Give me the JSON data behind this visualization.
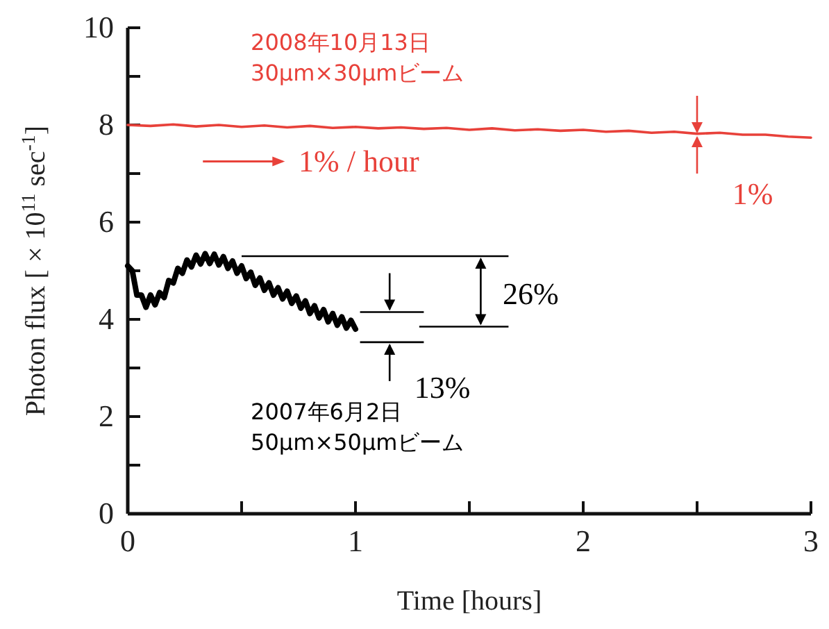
{
  "chart_data": {
    "type": "line",
    "xlabel": "Time [hours]",
    "ylabel": "Photon flux [ × 10$^{11}$ sec$^{-1}$]",
    "xlim": [
      0,
      3
    ],
    "ylim": [
      0,
      10
    ],
    "xticks": [
      0,
      {
        "value": 0.5,
        "label": null
      },
      1,
      {
        "value": 1.5,
        "label": null
      },
      2,
      {
        "value": 2.5,
        "label": null
      },
      3
    ],
    "yticks": [
      0,
      {
        "value": 1,
        "label": null
      },
      2,
      {
        "value": 3,
        "label": null
      },
      4,
      {
        "value": 5,
        "label": null
      },
      6,
      {
        "value": 7,
        "label": null
      },
      8,
      {
        "value": 9,
        "label": null
      },
      10
    ],
    "grid": false,
    "marker": "none",
    "line_style": "solid",
    "series": [
      {
        "name": "2008年10月13日 30μm×30μmビーム",
        "color": "#e8413a",
        "x": [
          0,
          0.1,
          0.2,
          0.3,
          0.4,
          0.5,
          0.6,
          0.7,
          0.8,
          0.9,
          1.0,
          1.1,
          1.2,
          1.3,
          1.4,
          1.5,
          1.6,
          1.7,
          1.8,
          1.9,
          2.0,
          2.1,
          2.2,
          2.3,
          2.4,
          2.5,
          2.6,
          2.7,
          2.8,
          2.9,
          3.0
        ],
        "values": [
          8.0,
          7.98,
          8.01,
          7.97,
          8.0,
          7.96,
          7.99,
          7.95,
          7.98,
          7.94,
          7.96,
          7.93,
          7.95,
          7.92,
          7.94,
          7.9,
          7.93,
          7.89,
          7.91,
          7.88,
          7.9,
          7.86,
          7.88,
          7.84,
          7.86,
          7.82,
          7.84,
          7.8,
          7.8,
          7.76,
          7.74
        ]
      },
      {
        "name": "2007年6月2日 50μm×50μmビーム",
        "color": "#000000",
        "x": [
          0,
          0.02,
          0.04,
          0.06,
          0.08,
          0.1,
          0.12,
          0.14,
          0.16,
          0.18,
          0.2,
          0.22,
          0.24,
          0.26,
          0.28,
          0.3,
          0.32,
          0.34,
          0.36,
          0.38,
          0.4,
          0.42,
          0.44,
          0.46,
          0.48,
          0.5,
          0.52,
          0.54,
          0.56,
          0.58,
          0.6,
          0.62,
          0.64,
          0.66,
          0.68,
          0.7,
          0.72,
          0.74,
          0.76,
          0.78,
          0.8,
          0.82,
          0.84,
          0.86,
          0.88,
          0.9,
          0.92,
          0.94,
          0.96,
          0.98,
          1.0
        ],
        "values": [
          5.1,
          5.0,
          4.5,
          4.5,
          4.25,
          4.5,
          4.3,
          4.55,
          4.45,
          4.8,
          4.75,
          5.05,
          4.95,
          5.22,
          5.08,
          5.32,
          5.14,
          5.35,
          5.15,
          5.34,
          5.12,
          5.29,
          5.05,
          5.2,
          4.95,
          5.1,
          4.84,
          4.97,
          4.7,
          4.85,
          4.6,
          4.75,
          4.5,
          4.65,
          4.42,
          4.58,
          4.33,
          4.48,
          4.23,
          4.38,
          4.12,
          4.28,
          4.03,
          4.2,
          3.95,
          4.12,
          3.88,
          4.05,
          3.82,
          3.98,
          3.8
        ]
      }
    ],
    "annotations": [
      "1% / hour",
      {
        "text": "1%",
        "x": 2.5,
        "y": 7.8
      },
      "26%",
      "13%"
    ]
  }
}
